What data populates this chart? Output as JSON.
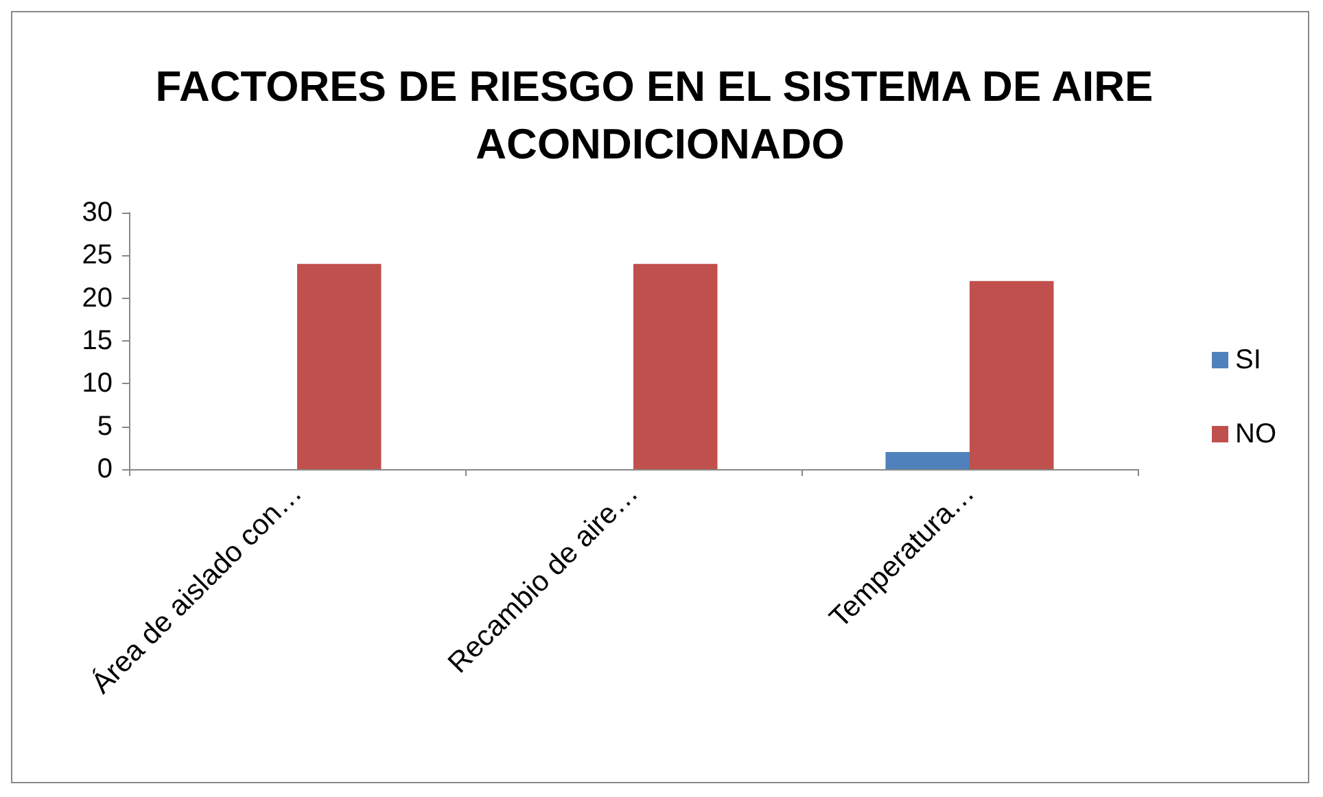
{
  "chart_data": {
    "type": "bar",
    "title": "FACTORES DE RIESGO EN EL SISTEMA DE AIRE ACONDICIONADO",
    "categories": [
      "Área de aislado con…",
      "Recambio de aire…",
      "Temperatura…"
    ],
    "series": [
      {
        "name": "SI",
        "color": "#4f81bd",
        "values": [
          0,
          0,
          2
        ]
      },
      {
        "name": "NO",
        "color": "#c0504d",
        "values": [
          24,
          24,
          22
        ]
      }
    ],
    "ylim": [
      0,
      30
    ],
    "yticks": [
      0,
      5,
      10,
      15,
      20,
      25,
      30
    ],
    "legend": "right"
  }
}
